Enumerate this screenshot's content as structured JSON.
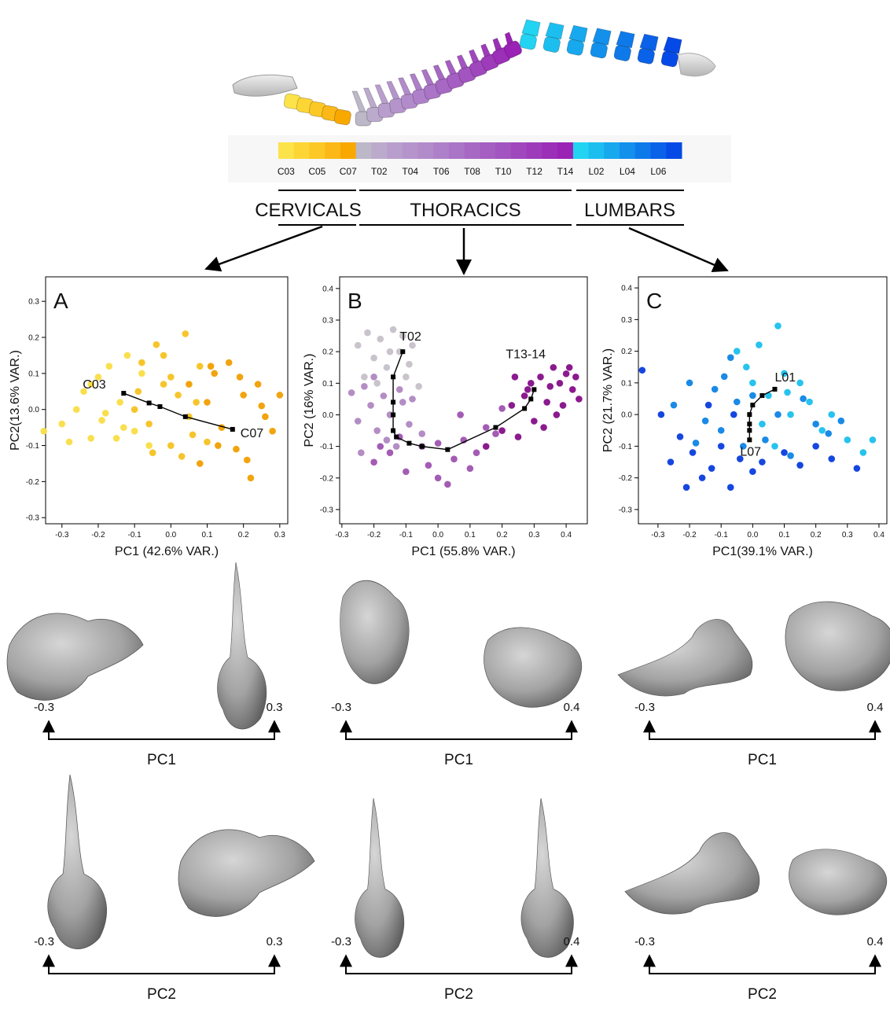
{
  "colorbar": {
    "colors": [
      "#fde34a",
      "#fdd535",
      "#fcc826",
      "#fbb817",
      "#f9a800",
      "#bcb8c8",
      "#bbaacb",
      "#b89ecd",
      "#b594cc",
      "#b28bcb",
      "#ae80c9",
      "#aa74c7",
      "#a768c4",
      "#a55ec2",
      "#a254c0",
      "#a047be",
      "#9d3bbb",
      "#9b2fb8",
      "#9a22b5",
      "#22d3f2",
      "#1cbef0",
      "#17a8ee",
      "#1290ec",
      "#0e7aea",
      "#0a62e8",
      "#054ae6"
    ],
    "labels": [
      "C03",
      null,
      "C05",
      null,
      "C07",
      null,
      "T02",
      null,
      "T04",
      null,
      "T06",
      null,
      "T08",
      null,
      "T10",
      null,
      "T12",
      null,
      "T14",
      null,
      "L02",
      null,
      "L04",
      null,
      "L06",
      null
    ]
  },
  "regions": [
    "CERVICALS",
    "THORACICS",
    "LUMBARS"
  ],
  "chart_data": [
    {
      "type": "scatter",
      "label": "A",
      "xlabel": "PC1 (42.6% VAR.)",
      "ylabel": "PC2(13.6% VAR.)",
      "xlim": [
        -0.345,
        0.322
      ],
      "xticks": [
        -0.3,
        -0.2,
        -0.1,
        {
          "value": 0,
          "label": "0.0"
        },
        0.1,
        0.2,
        0.3
      ],
      "ylim": [
        -0.317,
        0.368
      ],
      "yticks": [
        -0.3,
        -0.2,
        -0.1,
        {
          "value": 0,
          "label": "0.0"
        },
        0.1,
        0.2,
        0.3
      ],
      "series": [
        {
          "color": "#f9df4e",
          "x": [
            -0.35,
            -0.3,
            -0.28,
            -0.26,
            -0.24,
            -0.22,
            -0.2,
            -0.19,
            -0.17,
            -0.15,
            -0.14,
            -0.12,
            -0.1,
            -0.08,
            -0.06,
            -0.22,
            -0.18,
            -0.13
          ],
          "y": [
            -0.06,
            -0.04,
            -0.09,
            0.0,
            0.05,
            -0.08,
            0.09,
            -0.03,
            0.12,
            -0.08,
            0.02,
            0.15,
            -0.06,
            0.1,
            -0.1,
            0.07,
            -0.01,
            -0.05
          ]
        },
        {
          "color": "#f6c52c",
          "x": [
            -0.1,
            -0.08,
            -0.06,
            -0.04,
            -0.02,
            0.0,
            0.02,
            0.04,
            0.06,
            0.08,
            -0.05,
            0.0,
            0.05,
            -0.09,
            0.03,
            -0.02,
            0.07,
            0.1
          ],
          "y": [
            0.0,
            0.13,
            -0.04,
            0.18,
            0.07,
            -0.1,
            0.04,
            0.21,
            -0.07,
            0.12,
            -0.12,
            0.09,
            -0.02,
            0.05,
            -0.13,
            0.15,
            0.02,
            -0.09
          ]
        },
        {
          "color": "#f2a40e",
          "x": [
            0.05,
            0.08,
            0.1,
            0.12,
            0.14,
            0.16,
            0.18,
            0.2,
            0.22,
            0.24,
            0.26,
            0.28,
            0.3,
            0.13,
            0.19,
            0.21,
            0.25,
            0.11
          ],
          "y": [
            0.07,
            -0.15,
            0.02,
            0.1,
            -0.05,
            0.13,
            -0.11,
            0.04,
            -0.19,
            0.07,
            -0.02,
            -0.06,
            0.04,
            -0.1,
            0.09,
            -0.14,
            0.01,
            0.12
          ]
        },
        {
          "color": "#000000",
          "line": true,
          "start_label": "C03",
          "end_label": "C07",
          "x": [
            -0.13,
            -0.06,
            -0.03,
            0.04,
            0.17
          ],
          "y": [
            0.045,
            0.018,
            0.008,
            -0.02,
            -0.055
          ]
        }
      ]
    },
    {
      "type": "scatter",
      "label": "B",
      "xlabel": "PC1 (55.8% VAR.)",
      "ylabel": "PC2 (16% VAR.)",
      "xlim": [
        -0.307,
        0.466
      ],
      "xticks": [
        -0.3,
        -0.2,
        -0.1,
        {
          "value": 0,
          "label": "0.0"
        },
        0.1,
        0.2,
        0.3,
        0.4
      ],
      "ylim": [
        -0.345,
        0.437
      ],
      "yticks": [
        -0.3,
        -0.2,
        -0.1,
        {
          "value": 0,
          "label": "0.0"
        },
        0.1,
        0.2,
        0.3,
        0.4
      ],
      "series": [
        {
          "color": "#c9c3cc",
          "x": [
            -0.25,
            -0.22,
            -0.2,
            -0.18,
            -0.16,
            -0.14,
            -0.12,
            -0.1,
            -0.08,
            -0.23,
            -0.19,
            -0.15,
            -0.11,
            -0.09,
            -0.06
          ],
          "y": [
            0.22,
            0.26,
            0.18,
            0.24,
            0.15,
            0.27,
            0.2,
            0.12,
            0.22,
            0.12,
            0.1,
            0.2,
            0.25,
            0.16,
            0.09
          ]
        },
        {
          "color": "#b48dc4",
          "x": [
            -0.27,
            -0.25,
            -0.23,
            -0.21,
            -0.19,
            -0.17,
            -0.15,
            -0.13,
            -0.11,
            -0.09,
            -0.24,
            -0.2,
            -0.16,
            -0.12,
            -0.08,
            -0.05
          ],
          "y": [
            0.07,
            -0.02,
            0.09,
            0.03,
            -0.05,
            0.06,
            0.0,
            -0.1,
            0.04,
            -0.03,
            -0.12,
            0.12,
            -0.08,
            0.08,
            0.05,
            -0.06
          ]
        },
        {
          "color": "#a35cb4",
          "x": [
            -0.2,
            -0.15,
            -0.1,
            -0.05,
            0.0,
            0.05,
            0.08,
            0.12,
            0.15,
            -0.12,
            -0.03,
            0.03,
            0.1,
            0.18,
            0.2,
            -0.18,
            0.07,
            0.0
          ],
          "y": [
            -0.15,
            -0.12,
            -0.18,
            -0.1,
            -0.2,
            -0.14,
            -0.08,
            -0.12,
            -0.04,
            -0.07,
            -0.16,
            -0.22,
            -0.17,
            -0.06,
            0.02,
            -0.1,
            0.0,
            -0.09
          ]
        },
        {
          "color": "#8b1a8e",
          "x": [
            0.15,
            0.2,
            0.23,
            0.25,
            0.27,
            0.29,
            0.3,
            0.32,
            0.34,
            0.36,
            0.38,
            0.4,
            0.42,
            0.44,
            0.33,
            0.37,
            0.41,
            0.28,
            0.24,
            0.35,
            0.39,
            0.43
          ],
          "y": [
            -0.1,
            -0.05,
            0.03,
            -0.07,
            0.06,
            0.1,
            -0.02,
            0.12,
            0.04,
            0.15,
            0.1,
            0.13,
            0.08,
            0.05,
            -0.04,
            0.0,
            0.15,
            0.08,
            0.12,
            0.09,
            0.03,
            0.12
          ]
        },
        {
          "color": "#000000",
          "line": true,
          "start_label": "T02",
          "end_label": "T13-14",
          "x": [
            -0.11,
            -0.14,
            -0.14,
            -0.14,
            -0.14,
            -0.13,
            -0.09,
            -0.05,
            0.03,
            0.18,
            0.27,
            0.29,
            0.3
          ],
          "y": [
            0.2,
            0.12,
            0.04,
            0.0,
            -0.05,
            -0.07,
            -0.09,
            -0.1,
            -0.11,
            -0.04,
            0.02,
            0.05,
            0.08
          ]
        }
      ]
    },
    {
      "type": "scatter",
      "label": "C",
      "xlabel": "PC1(39.1% VAR.)",
      "ylabel": "PC2 (21.7% VAR.)",
      "xlim": [
        -0.362,
        0.425
      ],
      "xticks": [
        -0.3,
        -0.2,
        -0.1,
        {
          "value": 0,
          "label": "0.0"
        },
        0.1,
        0.2,
        0.3,
        0.4
      ],
      "ylim": [
        -0.345,
        0.435
      ],
      "yticks": [
        -0.3,
        -0.2,
        -0.1,
        {
          "value": 0,
          "label": "0.0"
        },
        0.1,
        0.2,
        0.3,
        0.4
      ],
      "series": [
        {
          "color": "#27c3ee",
          "x": [
            -0.05,
            -0.02,
            0.0,
            0.02,
            0.05,
            0.08,
            0.1,
            0.12,
            0.15,
            0.18,
            0.22,
            0.25,
            0.3,
            0.38,
            0.35,
            0.03,
            0.07,
            0.11
          ],
          "y": [
            0.2,
            0.15,
            0.1,
            0.22,
            0.06,
            0.28,
            0.13,
            0.0,
            0.1,
            0.04,
            -0.05,
            0.0,
            -0.08,
            -0.08,
            -0.12,
            -0.03,
            -0.1,
            0.07
          ]
        },
        {
          "color": "#1a8ae6",
          "x": [
            -0.25,
            -0.2,
            -0.15,
            -0.12,
            -0.1,
            -0.07,
            -0.05,
            -0.03,
            0.0,
            0.04,
            0.08,
            0.12,
            0.16,
            0.2,
            0.24,
            0.28,
            -0.18,
            -0.09
          ],
          "y": [
            0.03,
            0.1,
            -0.02,
            0.08,
            -0.05,
            0.18,
            0.04,
            -0.1,
            0.06,
            -0.08,
            0.0,
            -0.13,
            0.05,
            -0.03,
            -0.06,
            -0.02,
            -0.09,
            0.12
          ]
        },
        {
          "color": "#1646e0",
          "x": [
            -0.35,
            -0.29,
            -0.26,
            -0.23,
            -0.21,
            -0.19,
            -0.16,
            -0.13,
            -0.1,
            -0.07,
            -0.04,
            0.0,
            0.03,
            0.1,
            0.15,
            0.2,
            0.25,
            0.33,
            -0.14,
            -0.06
          ],
          "y": [
            0.14,
            0.0,
            -0.15,
            -0.07,
            -0.23,
            -0.12,
            -0.2,
            -0.17,
            -0.1,
            -0.23,
            -0.14,
            -0.18,
            -0.15,
            -0.12,
            -0.16,
            -0.1,
            -0.14,
            -0.17,
            0.03,
            0.0
          ]
        },
        {
          "color": "#000000",
          "line": true,
          "start_label": "L01",
          "end_label": "L07",
          "x": [
            0.07,
            0.03,
            0.0,
            -0.01,
            -0.01,
            -0.01,
            -0.01
          ],
          "y": [
            0.08,
            0.06,
            0.03,
            0.0,
            -0.03,
            -0.05,
            -0.08
          ]
        }
      ]
    }
  ],
  "shape_panels": [
    {
      "rows": [
        {
          "axis": "PC1",
          "min": -0.3,
          "max": 0.3
        },
        {
          "axis": "PC2",
          "min": -0.3,
          "max": 0.3
        }
      ]
    },
    {
      "rows": [
        {
          "axis": "PC1",
          "min": -0.3,
          "max": 0.4
        },
        {
          "axis": "PC2",
          "min": -0.3,
          "max": 0.4
        }
      ]
    },
    {
      "rows": [
        {
          "axis": "PC1",
          "min": -0.3,
          "max": 0.4
        },
        {
          "axis": "PC2",
          "min": -0.3,
          "max": 0.4
        }
      ]
    }
  ]
}
